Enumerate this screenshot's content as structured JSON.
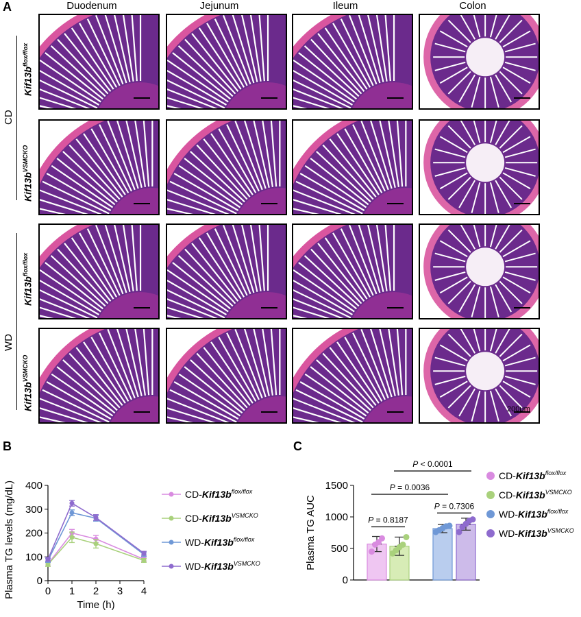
{
  "panelA": {
    "letter": "A",
    "columns": [
      "Duodenum",
      "Jejunum",
      "Ileum",
      "Colon"
    ],
    "groups": [
      "CD",
      "WD"
    ],
    "genotypes": [
      {
        "base": "Kif13b",
        "sup": "flox/flox"
      },
      {
        "base": "Kif13b",
        "sup": "VSMCKO"
      },
      {
        "base": "Kif13b",
        "sup": "flox/flox"
      },
      {
        "base": "Kif13b",
        "sup": "VSMCKO"
      }
    ],
    "scale_label": "200μm",
    "colors": {
      "tissue": "#b5339c",
      "mucosa": "#6b2a8c",
      "muscle": "#d9559f"
    }
  },
  "panelB": {
    "letter": "B",
    "chart_data": {
      "type": "line",
      "xlabel": "Time (h)",
      "ylabel": "Plasma TG levels (mg/dL)",
      "x": [
        0,
        1,
        2,
        4
      ],
      "xticks": [
        "0",
        "1",
        "2",
        "3",
        "4"
      ],
      "yticks": [
        "0",
        "100",
        "200",
        "300",
        "400"
      ],
      "xlim": [
        0,
        4
      ],
      "ylim": [
        0,
        400
      ],
      "series": [
        {
          "name": "CD-Kif13b",
          "sup": "flox/flox",
          "color": "#d98be0",
          "values": [
            70,
            200,
            175,
            90
          ],
          "err": [
            8,
            15,
            15,
            8
          ]
        },
        {
          "name": "CD-Kif13b",
          "sup": "VSMCKO",
          "color": "#a9d17c",
          "values": [
            68,
            182,
            155,
            85
          ],
          "err": [
            8,
            22,
            18,
            8
          ]
        },
        {
          "name": "WD-Kif13b",
          "sup": "flox/flox",
          "color": "#6f98d6",
          "values": [
            85,
            285,
            262,
            110
          ],
          "err": [
            8,
            12,
            12,
            8
          ]
        },
        {
          "name": "WD-Kif13b",
          "sup": "VSMCKO",
          "color": "#8e6bce",
          "values": [
            90,
            325,
            265,
            115
          ],
          "err": [
            8,
            12,
            12,
            8
          ]
        }
      ]
    }
  },
  "panelC": {
    "letter": "C",
    "chart_data": {
      "type": "bar",
      "ylabel": "Plasma TG AUC",
      "yticks": [
        "0",
        "500",
        "1000",
        "1500"
      ],
      "ylim": [
        0,
        1500
      ],
      "categories": [
        "CD-Kif13b flox/flox",
        "CD-Kif13b VSMCKO",
        "WD-Kif13b flox/flox",
        "WD-Kif13b VSMCKO"
      ],
      "values": [
        570,
        535,
        815,
        885
      ],
      "err": [
        120,
        145,
        65,
        95
      ],
      "points": [
        [
          450,
          560,
          600,
          660
        ],
        [
          420,
          470,
          520,
          560,
          680
        ],
        [
          760,
          790,
          820,
          850,
          860
        ],
        [
          760,
          840,
          890,
          940,
          960
        ]
      ],
      "bar_colors": [
        "#efc6f2",
        "#d7ecb6",
        "#b9cdee",
        "#cdbbea"
      ],
      "point_colors": [
        "#d98be0",
        "#a9d17c",
        "#6f98d6",
        "#8e6bce"
      ],
      "comparisons": [
        {
          "text": "P = 0.8187",
          "from": 0,
          "to": 1
        },
        {
          "text": "P = 0.7306",
          "from": 2,
          "to": 3
        },
        {
          "text": "P = 0.0036",
          "from": 0,
          "to": 2
        },
        {
          "text": "P < 0.0001",
          "from": 1,
          "to": 3
        }
      ],
      "legend": [
        {
          "name": "CD-Kif13b",
          "sup": "flox/flox"
        },
        {
          "name": "CD-Kif13b",
          "sup": "VSMCKO"
        },
        {
          "name": "WD-Kif13b",
          "sup": "flox/flox"
        },
        {
          "name": "WD-Kif13b",
          "sup": "VSMCKO"
        }
      ]
    }
  }
}
